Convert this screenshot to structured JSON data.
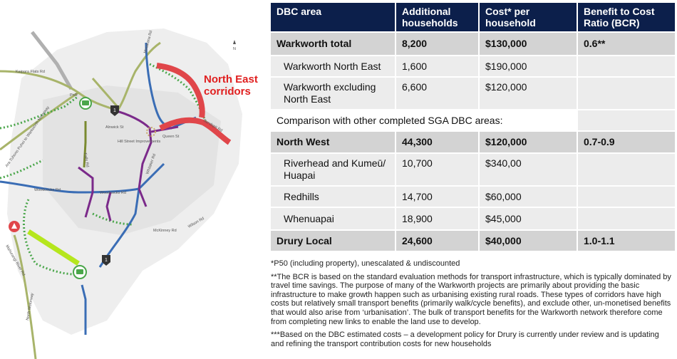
{
  "map": {
    "corridor_label_line1": "North East",
    "corridor_label_line2": "corridors",
    "north_label": "N",
    "pnr_label": "PnR",
    "sh_label": "1",
    "roads": {
      "kaipara": "Kaipara Flats Rd",
      "matakana": "Matakana Rd",
      "sandspit": "Sandspit Rd",
      "alnwick": "Alnwick St",
      "queen": "Queen St",
      "hill_street": "Hill Street Improvements",
      "whitaker": "Whitaker Rd",
      "falls": "Falls Rd",
      "woodcocks": "Woodcocks Rd",
      "mcKinney": "McKinney Rd",
      "wilson": "Wilson Rd",
      "motorway": "Ara Tuhono Puhoi to Warkworth Motorway",
      "mahurangi": "Mahurangi River Rd",
      "north_motorway": "North Motorway"
    },
    "colors": {
      "purple": "#7b2a8a",
      "blue": "#3a6db5",
      "green_dots": "#4aa64a",
      "olive": "#a8b46a",
      "red": "#e0464a",
      "lime": "#b5e61d"
    }
  },
  "table": {
    "headers": [
      "DBC area",
      "Additional households",
      "Cost* per household",
      "Benefit to Cost Ratio (BCR)"
    ],
    "rows": [
      {
        "type": "bold",
        "cells": [
          "Warkworth total",
          "8,200",
          "$130,000",
          "0.6**"
        ]
      },
      {
        "type": "sub",
        "cells": [
          "Warkworth North East",
          "1,600",
          "$190,000",
          ""
        ]
      },
      {
        "type": "sub",
        "cells": [
          "Warkworth excluding North East",
          "6,600",
          "$120,000",
          ""
        ]
      },
      {
        "type": "note",
        "cells": [
          "Comparison with other completed SGA DBC areas:",
          ""
        ]
      },
      {
        "type": "bold",
        "cells": [
          "North West",
          "44,300",
          "$120,000",
          "0.7-0.9"
        ]
      },
      {
        "type": "sub",
        "cells": [
          "Riverhead and Kumeū/ Huapai",
          "10,700",
          "$340,00",
          ""
        ]
      },
      {
        "type": "sub",
        "cells": [
          "Redhills",
          "14,700",
          "$60,000",
          ""
        ]
      },
      {
        "type": "sub",
        "cells": [
          "Whenuapai",
          "18,900",
          "$45,000",
          ""
        ]
      },
      {
        "type": "bold",
        "cells": [
          "Drury Local",
          "24,600",
          "$40,000",
          "1.0-1.1"
        ]
      }
    ]
  },
  "notes": {
    "p50": "*P50 (including property), unescalated & undiscounted",
    "bcr": "**The BCR is based on the standard evaluation methods for transport infrastructure, which is typically dominated by travel time savings. The purpose of many of the Warkworth projects are primarily about providing the basic infrastructure to make growth happen such as urbanising existing rural roads. These types of corridors have high costs but relatively small transport benefits (primarily walk/cycle benefits), and exclude other, un-monetised benefits that would also arise from ‘urbanisation’. The bulk of transport benefits for the Warkworth network therefore come from completing new links to enable the land use to develop.",
    "dbc": "***Based on the DBC estimated costs – a development policy for Drury is currently under review and is updating and refining the transport contribution costs for new households"
  }
}
